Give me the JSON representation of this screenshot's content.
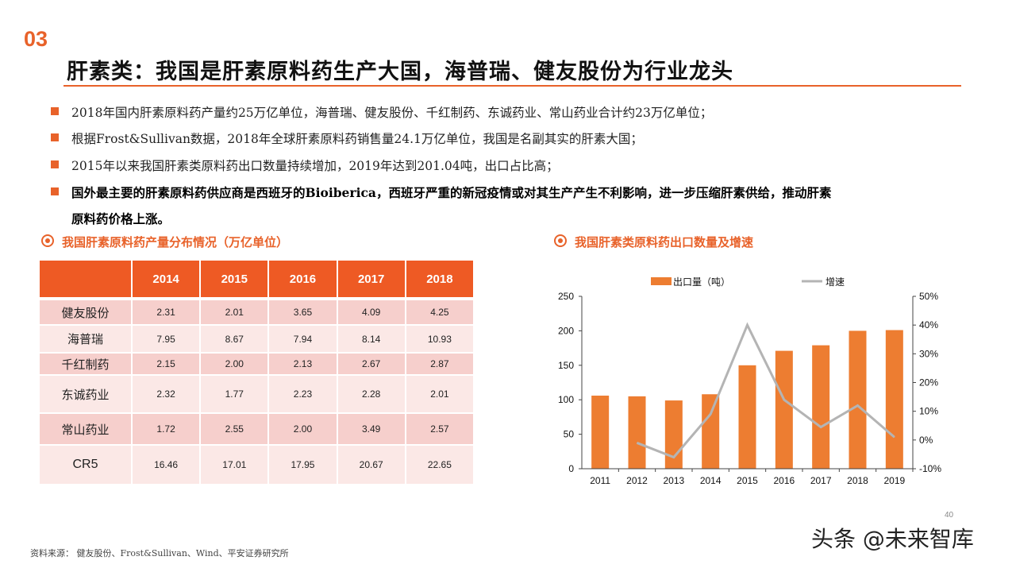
{
  "section_number": "03",
  "title": "肝素类：我国是肝素原料药生产大国，海普瑞、健友股份为行业龙头",
  "bullets": [
    {
      "text": "2018年国内肝素原料药产量约25万亿单位，海普瑞、健友股份、千红制药、东诚药业、常山药业合计约23万亿单位；",
      "bold": false
    },
    {
      "text": "根据Frost&Sullivan数据，2018年全球肝素原料药销售量24.1万亿单位，我国是名副其实的肝素大国；",
      "bold": false
    },
    {
      "text": "2015年以来我国肝素类原料药出口数量持续增加，2019年达到201.04吨，出口占比高；",
      "bold": false
    },
    {
      "text": "国外最主要的肝素原料药供应商是西班牙的Bioiberica，西班牙严重的新冠疫情或对其生产产生不利影响，进一步压缩肝素供给，推动肝素",
      "bold": true
    },
    {
      "text": "原料药价格上涨。",
      "bold": true
    }
  ],
  "table_section": {
    "heading": "我国肝素原料药产量分布情况（万亿单位）",
    "columns": [
      "",
      "2014",
      "2015",
      "2016",
      "2017",
      "2018"
    ],
    "rows": [
      [
        "健友股份",
        "2.31",
        "2.01",
        "3.65",
        "4.09",
        "4.25"
      ],
      [
        "海普瑞",
        "7.95",
        "8.67",
        "7.94",
        "8.14",
        "10.93"
      ],
      [
        "千红制药",
        "2.15",
        "2.00",
        "2.13",
        "2.67",
        "2.87"
      ],
      [
        "东诚药业",
        "2.32",
        "1.77",
        "2.23",
        "2.28",
        "2.01"
      ],
      [
        "常山药业",
        "1.72",
        "2.55",
        "2.00",
        "3.49",
        "2.57"
      ],
      [
        "CR5",
        "16.46",
        "17.01",
        "17.95",
        "20.67",
        "22.65"
      ]
    ],
    "colors": {
      "header": "#ee5a24",
      "row_dark": "#f6cfcc",
      "row_light": "#fbe8e6"
    }
  },
  "chart_section": {
    "heading": "我国肝素类原料药出口数量及增速"
  },
  "chart_data": {
    "type": "bar+line",
    "categories": [
      "2011",
      "2012",
      "2013",
      "2014",
      "2015",
      "2016",
      "2017",
      "2018",
      "2019"
    ],
    "series": [
      {
        "name": "出口量（吨）",
        "type": "bar",
        "axis": "left",
        "color": "#ed7d31",
        "values": [
          106,
          105,
          99,
          108,
          150,
          171,
          179,
          200,
          201.04
        ]
      },
      {
        "name": "增速",
        "type": "line",
        "axis": "right",
        "color": "#b4b4b4",
        "values": [
          null,
          -1,
          -6,
          9,
          40,
          14,
          4.5,
          12,
          1
        ]
      }
    ],
    "left_axis": {
      "range": [
        0,
        250
      ],
      "ticks": [
        "0",
        "50",
        "100",
        "150",
        "200",
        "250"
      ]
    },
    "right_axis": {
      "range": [
        -10,
        50
      ],
      "ticks": [
        "-10%",
        "0%",
        "10%",
        "20%",
        "30%",
        "40%",
        "50%"
      ]
    },
    "legend_position": "top",
    "grid": false
  },
  "footer": {
    "source": "资料来源： 健友股份、Frost&Sullivan、Wind、平安证券研究所",
    "page_number": "40",
    "watermark": "头条 @未来智库"
  },
  "accent_color": "#e8622a"
}
